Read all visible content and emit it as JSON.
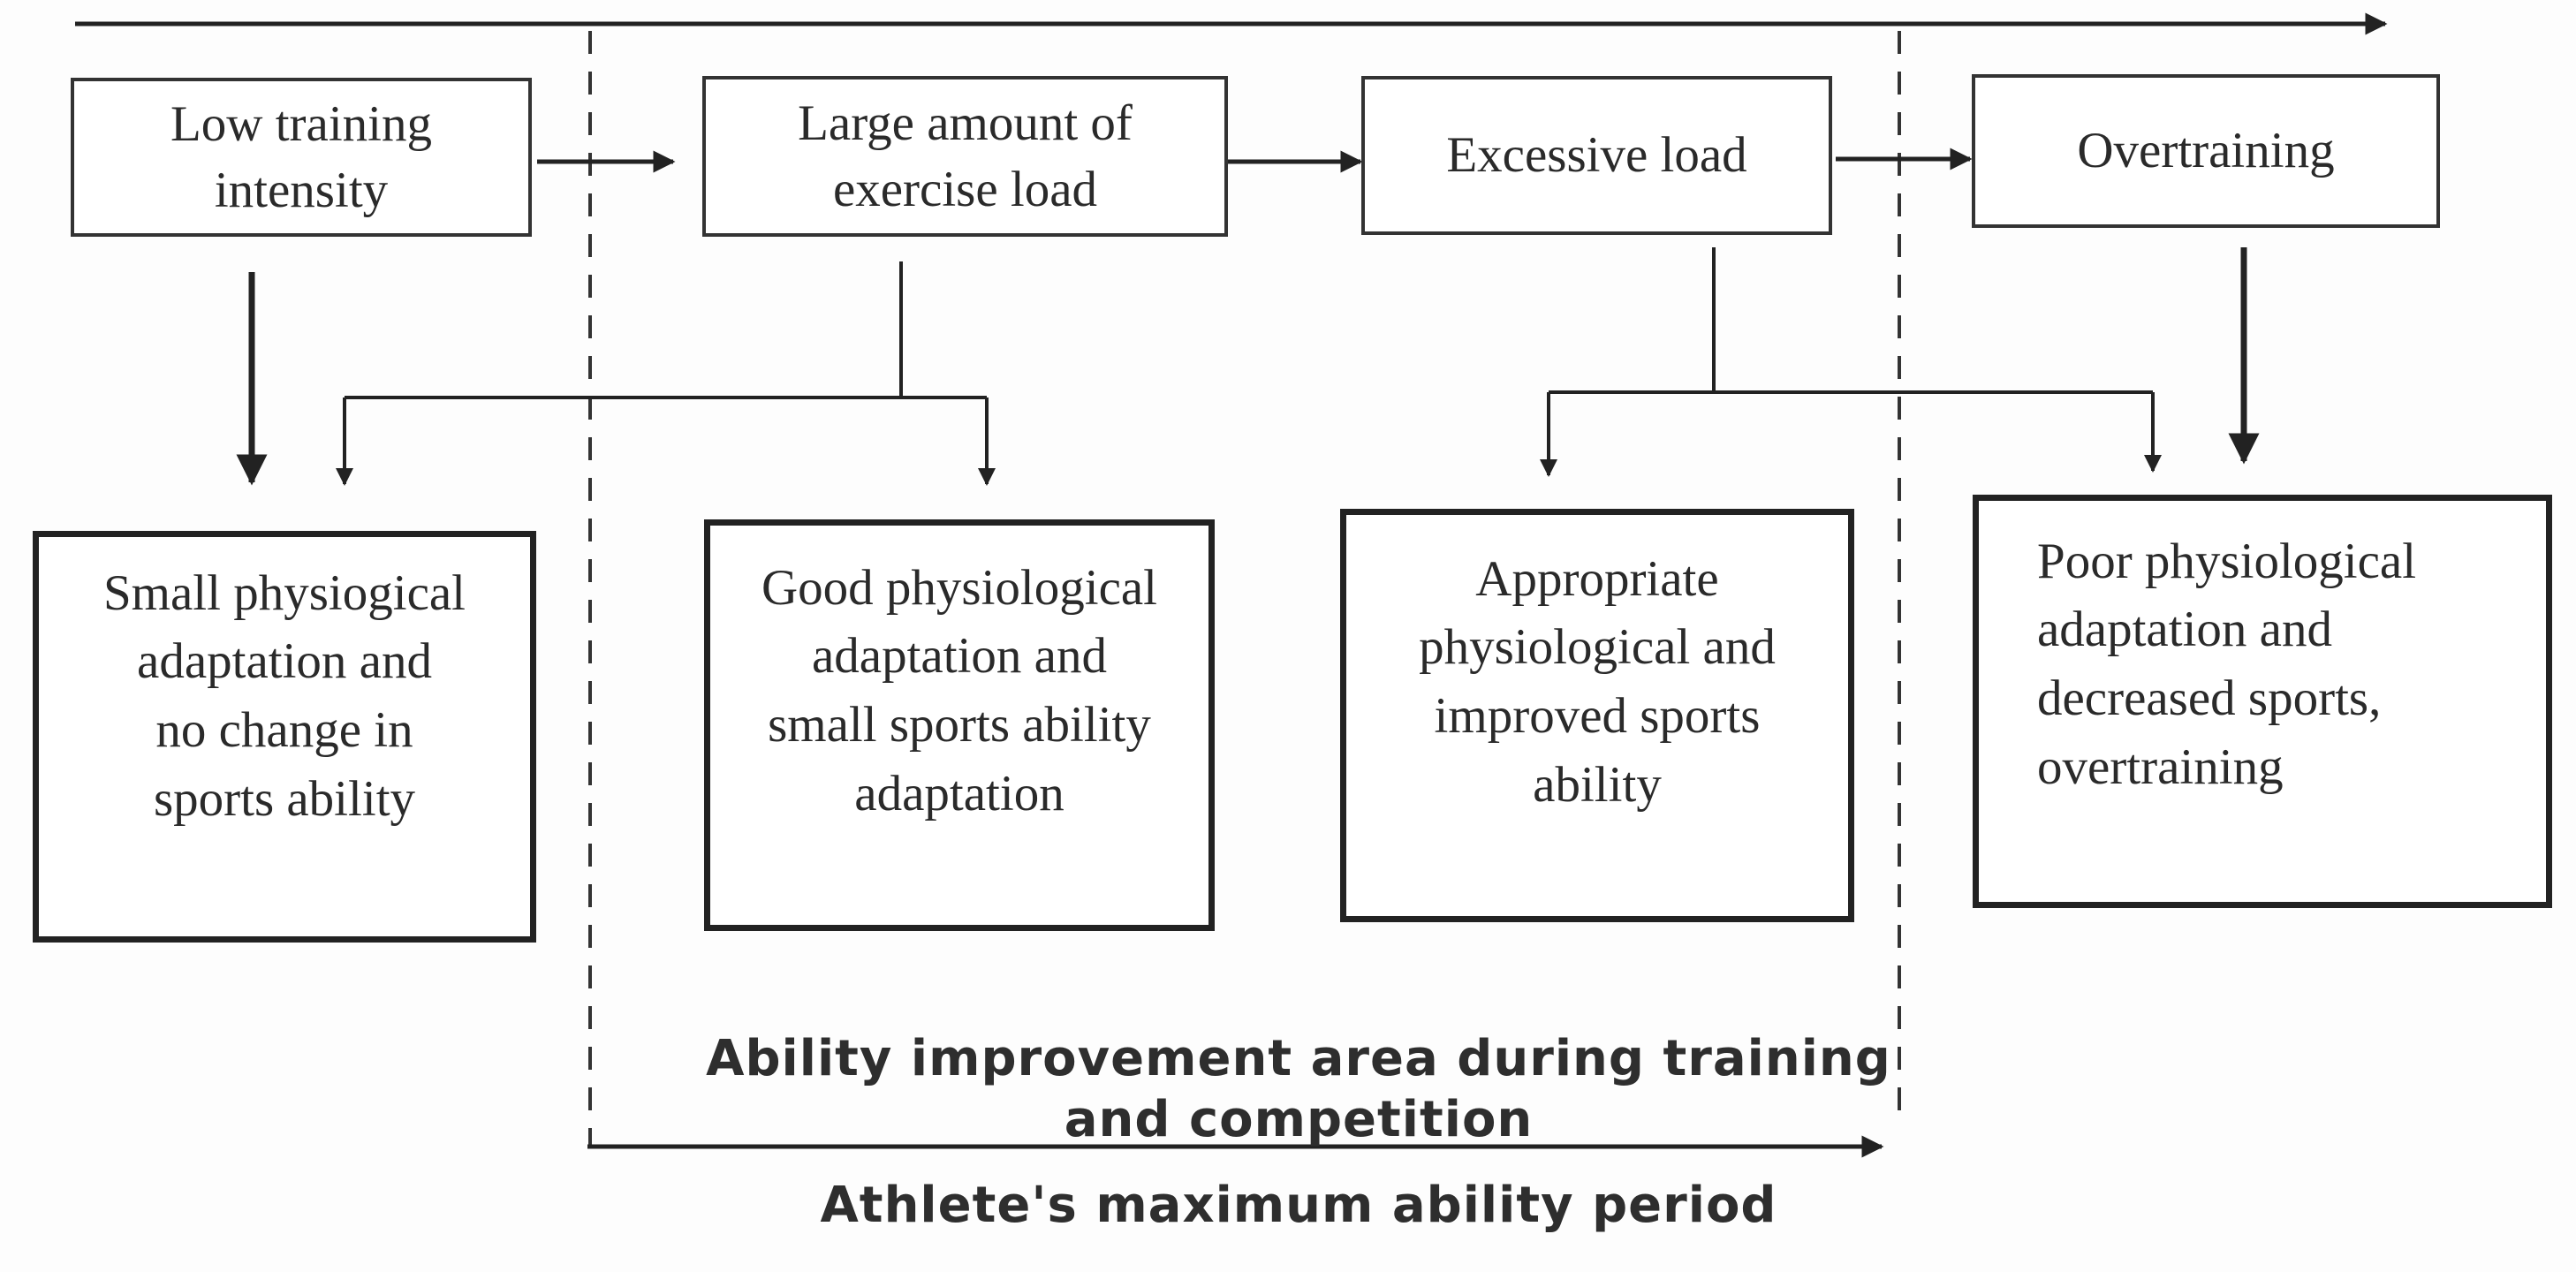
{
  "stages": [
    {
      "id": "low",
      "label": "Low training\nintensity"
    },
    {
      "id": "large",
      "label": "Large amount of\nexercise load"
    },
    {
      "id": "excessive",
      "label": "Excessive load"
    },
    {
      "id": "over",
      "label": "Overtraining"
    }
  ],
  "results": [
    {
      "id": "small",
      "label": "Small physiogical\nadaptation and\nno change in\nsports ability"
    },
    {
      "id": "good",
      "label": "Good physiological\nadaptation and\nsmall sports ability\nadaptation"
    },
    {
      "id": "appropriate",
      "label": "Appropriate\nphysiological and\nimproved sports\nability"
    },
    {
      "id": "poor",
      "label": "Poor physiological\nadaptation and\ndecreased sports,\novertraining"
    }
  ],
  "captions": {
    "improvement_area": "Ability improvement area during training\nand competition",
    "max_period": "Athlete's maximum ability period"
  },
  "colors": {
    "line": "#222222",
    "text": "#2a2a2a"
  }
}
